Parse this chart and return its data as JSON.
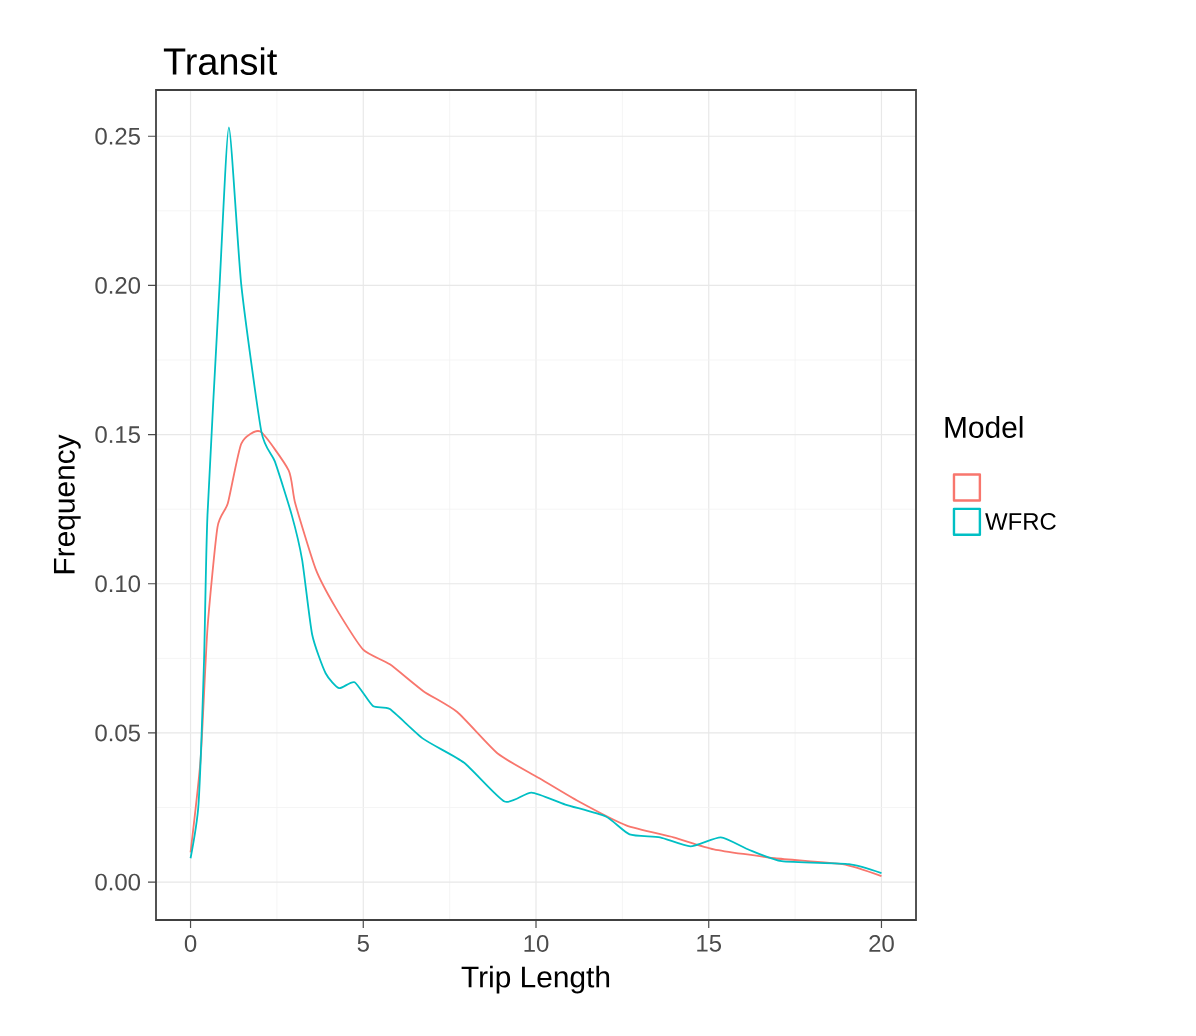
{
  "chart_data": {
    "type": "line",
    "title": "Transit",
    "xlabel": "Trip Length",
    "ylabel": "Frequency",
    "legend_title": "Model",
    "series": [
      {
        "color": "#f8766d",
        "x": [
          0,
          0.29,
          0.49,
          0.78,
          1.08,
          1.47,
          2.02,
          2.84,
          3.03,
          3.62,
          4.2,
          4.99,
          5.77,
          6.74,
          7.72,
          8.9,
          10.07,
          11.24,
          12.61,
          13.98,
          15.15,
          16.91,
          18.87,
          20
        ],
        "values": [
          0.01,
          0.041,
          0.085,
          0.119,
          0.127,
          0.147,
          0.151,
          0.138,
          0.127,
          0.105,
          0.092,
          0.078,
          0.073,
          0.064,
          0.057,
          0.043,
          0.035,
          0.027,
          0.019,
          0.015,
          0.011,
          0.008,
          0.006,
          0.002
        ]
      },
      {
        "name": "WFRC",
        "color": "#00bfc4",
        "x": [
          0,
          0.23,
          0.39,
          0.49,
          0.84,
          1.11,
          1.47,
          2.05,
          2.44,
          2.93,
          3.23,
          3.52,
          3.91,
          4.3,
          4.75,
          5.28,
          5.77,
          6.74,
          7.92,
          9.09,
          9.87,
          10.85,
          12.02,
          12.71,
          13.59,
          14.47,
          15.35,
          16.13,
          17.11,
          19.06,
          20
        ],
        "values": [
          0.008,
          0.026,
          0.074,
          0.123,
          0.2,
          0.253,
          0.2,
          0.151,
          0.141,
          0.123,
          0.108,
          0.083,
          0.07,
          0.065,
          0.067,
          0.059,
          0.058,
          0.048,
          0.04,
          0.027,
          0.03,
          0.026,
          0.022,
          0.016,
          0.015,
          0.012,
          0.015,
          0.011,
          0.007,
          0.006,
          0.003
        ]
      }
    ],
    "xlim": [
      -1,
      21
    ],
    "ylim": [
      -0.0127,
      0.2655
    ],
    "xticks": [
      0,
      5,
      10,
      15,
      20
    ],
    "yticks": [
      {
        "value": 0,
        "label": "0.00"
      },
      {
        "value": 0.05,
        "label": "0.05"
      },
      {
        "value": 0.1,
        "label": "0.10"
      },
      {
        "value": 0.15,
        "label": "0.15"
      },
      {
        "value": 0.2,
        "label": "0.20"
      },
      {
        "value": 0.25,
        "label": "0.25"
      }
    ],
    "grid": true,
    "legend": "right"
  }
}
